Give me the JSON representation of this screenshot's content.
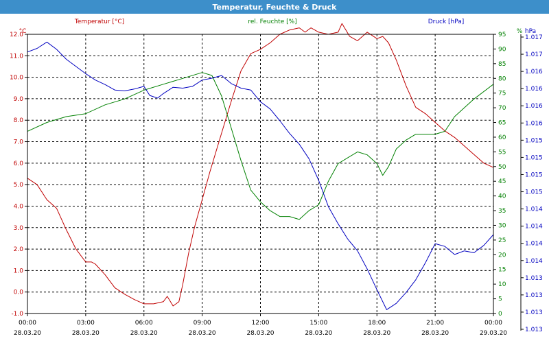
{
  "window": {
    "title": "Temperatur, Feuchte & Druck"
  },
  "colors": {
    "temperature": "#c00000",
    "humidity": "#008000",
    "pressure": "#0000c0",
    "titlebar": "#3d8fca",
    "grid": "#000000"
  },
  "chart_data": {
    "type": "line",
    "title": "Temperatur, Feuchte & Druck",
    "grid": true,
    "x": {
      "ticks": [
        {
          "time": "00:00",
          "date": "28.03.20"
        },
        {
          "time": "03:00",
          "date": "28.03.20"
        },
        {
          "time": "06:00",
          "date": "28.03.20"
        },
        {
          "time": "09:00",
          "date": "28.03.20"
        },
        {
          "time": "12:00",
          "date": "28.03.20"
        },
        {
          "time": "15:00",
          "date": "28.03.20"
        },
        {
          "time": "18:00",
          "date": "28.03.20"
        },
        {
          "time": "21:00",
          "date": "28.03.20"
        },
        {
          "time": "00:00",
          "date": "29.03.20"
        }
      ],
      "range_hours": [
        0,
        24
      ]
    },
    "axes": {
      "temperature": {
        "header": "Temperatur [°C]",
        "unit": "°C",
        "range": [
          -1.0,
          12.0
        ],
        "ticks": [
          "-1.0",
          "0.0",
          "1.0",
          "2.0",
          "3.0",
          "4.0",
          "5.0",
          "6.0",
          "7.0",
          "8.0",
          "9.0",
          "10.0",
          "11.0",
          "12.0"
        ]
      },
      "humidity": {
        "header": "rel. Feuchte [%]",
        "unit": "%",
        "range": [
          0,
          95
        ],
        "ticks": [
          "0",
          "5",
          "10",
          "15",
          "20",
          "25",
          "30",
          "35",
          "40",
          "45",
          "50",
          "55",
          "60",
          "65",
          "70",
          "75",
          "80",
          "85",
          "90",
          "95"
        ]
      },
      "pressure": {
        "header": "Druck [hPa]",
        "unit": "hPa",
        "ticks": [
          "1.013",
          "1.013",
          "1.013",
          "1.013",
          "1.014",
          "1.014",
          "1.014",
          "1.014",
          "1.015",
          "1.015",
          "1.015",
          "1.015",
          "1.016",
          "1.016",
          "1.016",
          "1.016",
          "1.017",
          "1.017"
        ]
      }
    },
    "series": [
      {
        "name": "Temperatur [°C]",
        "axis": "temperature",
        "x": [
          0,
          0.5,
          1,
          1.5,
          2,
          2.5,
          3,
          3.3,
          3.5,
          4,
          4.5,
          5,
          5.5,
          6,
          6.5,
          7,
          7.2,
          7.5,
          7.8,
          8,
          8.3,
          8.6,
          9,
          9.4,
          10,
          10.5,
          11,
          11.5,
          12,
          12.5,
          13,
          13.5,
          14,
          14.3,
          14.6,
          15,
          15.5,
          16,
          16.2,
          16.6,
          17,
          17.5,
          18,
          18.3,
          18.6,
          19,
          19.5,
          20,
          20.5,
          21,
          21.5,
          22,
          22.5,
          23,
          23.5,
          24
        ],
        "values": [
          5.3,
          5.0,
          4.3,
          3.9,
          2.9,
          2.0,
          1.4,
          1.4,
          1.3,
          0.8,
          0.2,
          -0.1,
          -0.35,
          -0.55,
          -0.55,
          -0.45,
          -0.2,
          -0.65,
          -0.45,
          0.35,
          1.8,
          3.0,
          4.3,
          5.6,
          7.4,
          8.9,
          10.3,
          11.1,
          11.3,
          11.6,
          12.0,
          12.2,
          12.3,
          12.1,
          12.3,
          12.1,
          12.0,
          12.1,
          12.5,
          11.9,
          11.7,
          12.1,
          11.8,
          11.9,
          11.6,
          10.8,
          9.6,
          8.6,
          8.3,
          7.9,
          7.5,
          7.2,
          6.8,
          6.4,
          6.0,
          5.8
        ]
      },
      {
        "name": "rel. Feuchte [%]",
        "axis": "humidity",
        "x": [
          0,
          1,
          2,
          3,
          4,
          5,
          6,
          7,
          8,
          9,
          9.5,
          10,
          10.5,
          11,
          11.5,
          12,
          12.5,
          13,
          13.5,
          14,
          14.5,
          15,
          15.5,
          16,
          16.5,
          17,
          17.5,
          18,
          18.3,
          18.6,
          19,
          19.5,
          20,
          21,
          21.5,
          22,
          23,
          24
        ],
        "values": [
          62,
          65,
          67,
          68,
          71,
          73,
          76,
          78,
          80,
          82,
          81,
          74,
          63,
          52,
          42,
          38,
          35,
          33,
          33,
          32,
          35,
          37,
          45,
          51,
          53,
          55,
          54,
          51,
          47,
          50,
          56,
          59,
          61,
          61,
          62,
          67,
          73,
          78
        ]
      },
      {
        "name": "Druck [hPa]",
        "axis": "pressure",
        "x": [
          0,
          0.5,
          1,
          1.5,
          2,
          2.5,
          3,
          3.5,
          4,
          4.5,
          5,
          5.5,
          6,
          6.3,
          6.7,
          7,
          7.5,
          8,
          8.5,
          9,
          9.5,
          10,
          10.5,
          11,
          11.5,
          12,
          12.5,
          13,
          13.5,
          14,
          14.5,
          15,
          15.5,
          16,
          16.5,
          17,
          17.5,
          18,
          18.5,
          19,
          19.5,
          20,
          20.5,
          21,
          21.5,
          22,
          22.5,
          23,
          23.5,
          24
        ],
        "values": [
          1.01668,
          1.01672,
          1.01679,
          1.01671,
          1.0166,
          1.01652,
          1.01644,
          1.01637,
          1.01632,
          1.01626,
          1.01625,
          1.01627,
          1.0163,
          1.0162,
          1.01617,
          1.01622,
          1.01629,
          1.01628,
          1.0163,
          1.01637,
          1.01639,
          1.01642,
          1.01633,
          1.01628,
          1.01626,
          1.01613,
          1.01605,
          1.01592,
          1.01578,
          1.01566,
          1.0155,
          1.01526,
          1.01497,
          1.01478,
          1.01461,
          1.01448,
          1.01428,
          1.01405,
          1.01383,
          1.0139,
          1.01402,
          1.01416,
          1.01435,
          1.01456,
          1.01453,
          1.01444,
          1.01448,
          1.01446,
          1.01454,
          1.01466
        ]
      }
    ]
  }
}
